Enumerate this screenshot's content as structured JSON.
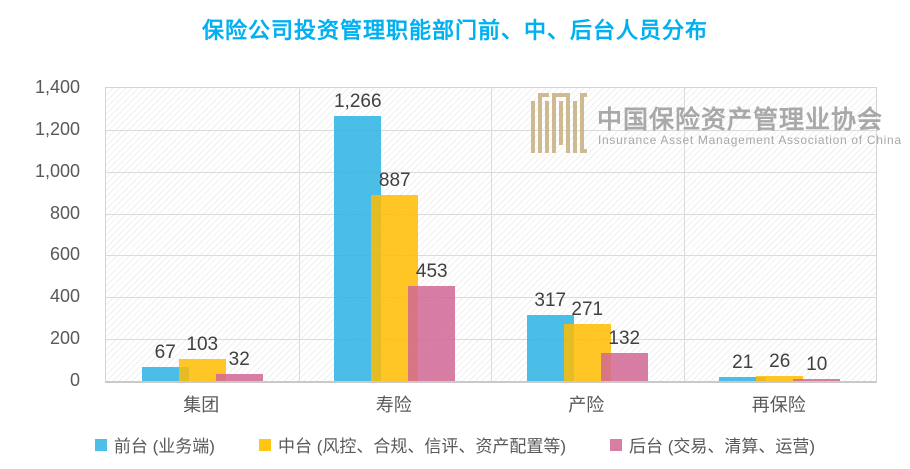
{
  "title": "保险公司投资管理职能部门前、中、后台人员分布",
  "colors": {
    "title": "#00B0F0",
    "axis_text": "#595959",
    "data_label_text": "#404040",
    "gridline": "#DBDBDB",
    "watermark_gold": "#C9B283",
    "watermark_gray": "#9B9B9B"
  },
  "watermark": {
    "logo": "IAMAC",
    "cn": "中国保险资产管理业协会",
    "en": "Insurance Asset Management Association of China"
  },
  "chart_data": {
    "type": "bar",
    "title": "保险公司投资管理职能部门前、中、后台人员分布",
    "categories": [
      "集团",
      "寿险",
      "产险",
      "再保险"
    ],
    "series": [
      {
        "name": "前台 (业务端)",
        "color": "#4CBEE8",
        "values": [
          67,
          1266,
          317,
          21
        ]
      },
      {
        "name": "中台 (风控、合规、信评、资产配置等)",
        "color": "#FFC613",
        "values": [
          103,
          887,
          271,
          26
        ]
      },
      {
        "name": "后台 (交易、清算、运营)",
        "color": "#D87EA5",
        "values": [
          32,
          453,
          132,
          10
        ]
      }
    ],
    "xlabel": "",
    "ylabel": "",
    "ylim": [
      0,
      1400
    ],
    "ytick_interval": 200,
    "ytick_labels": [
      "0",
      "200",
      "400",
      "600",
      "800",
      "1,000",
      "1,200",
      "1,400"
    ],
    "grid": true,
    "data_labels": true,
    "legend_position": "bottom",
    "plot_fill_pattern": "diagonal-hatch",
    "bar_style": "overlapping-translucent"
  },
  "legend": {
    "items": [
      {
        "label": "前台 (业务端)",
        "color": "#4CBEE8"
      },
      {
        "label": "中台 (风控、合规、信评、资产配置等)",
        "color": "#FFC613"
      },
      {
        "label": "后台 (交易、清算、运营)",
        "color": "#D87EA5"
      }
    ]
  }
}
